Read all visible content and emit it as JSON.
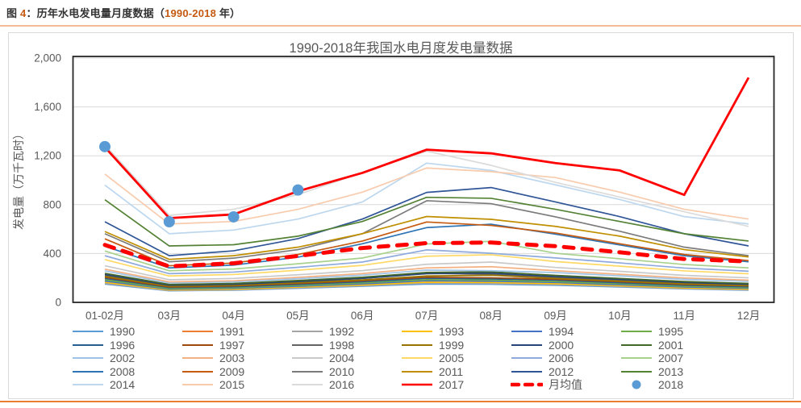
{
  "header": {
    "figure_label": "图 ",
    "figure_number": "4",
    "title_mid": "：历年水电发电量月度数据（",
    "years": "1990-2018",
    "suffix": " 年）"
  },
  "chart_data": {
    "type": "line",
    "title": "1990-2018年我国水电月度发电量数据",
    "xlabel": "",
    "ylabel": "发电量（万千瓦时）",
    "ylim": [
      0,
      2000
    ],
    "grid": true,
    "legend_position": "bottom",
    "y_ticks": [
      {
        "value": 0,
        "label": "0"
      },
      {
        "value": 400,
        "label": "400"
      },
      {
        "value": 800,
        "label": "800"
      },
      {
        "value": 1200,
        "label": "1,200"
      },
      {
        "value": 1600,
        "label": "1,600"
      },
      {
        "value": 2000,
        "label": "2,000"
      }
    ],
    "categories": [
      "01-02月",
      "03月",
      "04月",
      "05月",
      "06月",
      "07月",
      "08月",
      "09月",
      "10月",
      "11月",
      "12月"
    ],
    "series": [
      {
        "name": "1990",
        "color": "#5B9BD5",
        "style": "line",
        "values": [
          150,
          95,
          100,
          115,
          132,
          150,
          148,
          140,
          126,
          110,
          100
        ]
      },
      {
        "name": "1991",
        "color": "#ED7D31",
        "style": "line",
        "values": [
          160,
          99,
          105,
          121,
          139,
          161,
          158,
          149,
          133,
          116,
          105
        ]
      },
      {
        "name": "1992",
        "color": "#A5A5A5",
        "style": "line",
        "values": [
          156,
          97,
          103,
          119,
          136,
          158,
          155,
          146,
          130,
          113,
          103
        ]
      },
      {
        "name": "1993",
        "color": "#FFC000",
        "style": "line",
        "values": [
          165,
          102,
          108,
          125,
          143,
          166,
          163,
          153,
          137,
          119,
          108
        ]
      },
      {
        "name": "1994",
        "color": "#4472C4",
        "style": "line",
        "values": [
          175,
          108,
          115,
          132,
          152,
          177,
          173,
          163,
          145,
          126,
          115
        ]
      },
      {
        "name": "1995",
        "color": "#70AD47",
        "style": "line",
        "values": [
          185,
          114,
          121,
          139,
          160,
          186,
          182,
          171,
          153,
          133,
          121
        ]
      },
      {
        "name": "1996",
        "color": "#255E91",
        "style": "line",
        "values": [
          196,
          121,
          128,
          147,
          169,
          197,
          192,
          181,
          161,
          140,
          128
        ]
      },
      {
        "name": "1997",
        "color": "#9E480E",
        "style": "line",
        "values": [
          205,
          126,
          134,
          154,
          177,
          206,
          201,
          189,
          169,
          147,
          134
        ]
      },
      {
        "name": "1998",
        "color": "#636363",
        "style": "line",
        "values": [
          220,
          133,
          141,
          166,
          196,
          238,
          230,
          203,
          179,
          155,
          141
        ]
      },
      {
        "name": "1999",
        "color": "#997300",
        "style": "line",
        "values": [
          213,
          131,
          139,
          160,
          184,
          216,
          222,
          196,
          174,
          151,
          138
        ]
      },
      {
        "name": "2000",
        "color": "#264478",
        "style": "line",
        "values": [
          228,
          140,
          148,
          171,
          197,
          235,
          240,
          211,
          188,
          163,
          148
        ]
      },
      {
        "name": "2001",
        "color": "#43682B",
        "style": "line",
        "values": [
          238,
          147,
          155,
          179,
          206,
          245,
          250,
          221,
          196,
          171,
          155
        ]
      },
      {
        "name": "2002",
        "color": "#9DC3E6",
        "style": "line",
        "values": [
          258,
          159,
          168,
          194,
          223,
          264,
          259,
          244,
          217,
          189,
          172
        ]
      },
      {
        "name": "2003",
        "color": "#F4B183",
        "style": "line",
        "values": [
          272,
          168,
          177,
          205,
          236,
          282,
          292,
          259,
          230,
          200,
          182
        ]
      },
      {
        "name": "2004",
        "color": "#C9C9C9",
        "style": "line",
        "values": [
          300,
          185,
          196,
          226,
          260,
          312,
          330,
          286,
          254,
          221,
          201
        ]
      },
      {
        "name": "2005",
        "color": "#FFD966",
        "style": "line",
        "values": [
          350,
          216,
          228,
          263,
          303,
          378,
          390,
          334,
          296,
          258,
          234
        ]
      },
      {
        "name": "2006",
        "color": "#8FAADC",
        "style": "line",
        "values": [
          382,
          235,
          248,
          287,
          330,
          430,
          402,
          364,
          323,
          281,
          255
        ]
      },
      {
        "name": "2007",
        "color": "#A9D18E",
        "style": "line",
        "values": [
          420,
          259,
          273,
          316,
          363,
          478,
          500,
          402,
          357,
          310,
          282
        ]
      },
      {
        "name": "2008",
        "color": "#2E75B6",
        "style": "line",
        "values": [
          460,
          282,
          305,
          370,
          480,
          612,
          640,
          558,
          470,
          382,
          332
        ]
      },
      {
        "name": "2009",
        "color": "#C55A11",
        "style": "line",
        "values": [
          520,
          300,
          322,
          392,
          502,
          658,
          630,
          568,
          480,
          392,
          342
        ]
      },
      {
        "name": "2010",
        "color": "#7B7B7B",
        "style": "line",
        "values": [
          562,
          332,
          362,
          432,
          562,
          832,
          808,
          700,
          582,
          452,
          382
        ]
      },
      {
        "name": "2011",
        "color": "#BF8F00",
        "style": "line",
        "values": [
          580,
          352,
          382,
          452,
          562,
          703,
          680,
          622,
          542,
          432,
          372
        ]
      },
      {
        "name": "2012",
        "color": "#2F5597",
        "style": "line",
        "values": [
          660,
          382,
          422,
          522,
          682,
          900,
          940,
          822,
          702,
          562,
          462
        ]
      },
      {
        "name": "2013",
        "color": "#548235",
        "style": "line",
        "values": [
          840,
          462,
          472,
          542,
          662,
          860,
          852,
          762,
          662,
          562,
          502
        ]
      },
      {
        "name": "2014",
        "color": "#BDD7EE",
        "style": "line",
        "values": [
          960,
          562,
          592,
          682,
          822,
          1140,
          1080,
          962,
          842,
          702,
          642
        ]
      },
      {
        "name": "2015",
        "color": "#F8CBAD",
        "style": "line",
        "values": [
          1050,
          642,
          662,
          762,
          902,
          1100,
          1070,
          1022,
          902,
          762,
          682
        ]
      },
      {
        "name": "2016",
        "color": "#DBDBDB",
        "style": "line",
        "values": [
          1290,
          712,
          762,
          882,
          1062,
          1238,
          1122,
          982,
          862,
          742,
          622
        ]
      },
      {
        "name": "2017",
        "color": "#FF0000",
        "style": "line-bold",
        "values": [
          1270,
          690,
          720,
          910,
          1060,
          1250,
          1220,
          1140,
          1080,
          880,
          1840
        ]
      },
      {
        "name": "月均值",
        "color": "#FF0000",
        "style": "dashed",
        "values": [
          470,
          295,
          320,
          380,
          445,
          485,
          490,
          460,
          410,
          355,
          335
        ]
      },
      {
        "name": "2018",
        "color": "#5B9BD5",
        "style": "scatter",
        "values": [
          1275,
          660,
          700,
          920
        ]
      }
    ]
  },
  "colors": {
    "accent_orange": "#ED7D31",
    "text_gray": "#595959",
    "caption_dark": "#333333",
    "caption_number_orange": "#C55A11",
    "grid_gray": "#D9D9D9",
    "plot_border": "#262626"
  }
}
